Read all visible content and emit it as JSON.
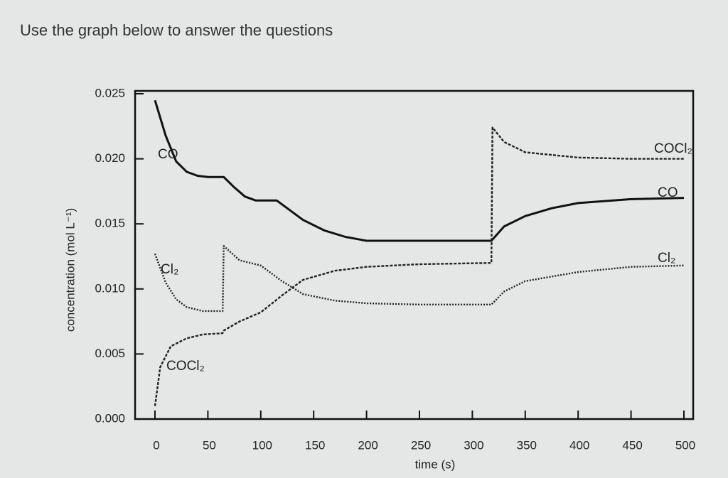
{
  "header": {
    "title": "Use the graph below to answer the questions"
  },
  "chart_data": {
    "type": "line",
    "x_label": "time (s)",
    "y_label": "concentration (mol L⁻¹)",
    "xlim": [
      0,
      500
    ],
    "xticks": [
      0,
      50,
      100,
      150,
      200,
      250,
      300,
      350,
      400,
      450,
      500
    ],
    "ylim": [
      0,
      0.025
    ],
    "yticks": [
      {
        "value": 0,
        "label": "0.000"
      },
      0.005,
      {
        "value": 0.01,
        "label": "0.010"
      },
      0.015,
      {
        "value": 0.02,
        "label": "0.020"
      },
      0.025
    ],
    "grid": false,
    "series": [
      {
        "name": "CO",
        "color": "#111111",
        "dash": "solid",
        "x": [
          0,
          10,
          20,
          30,
          40,
          50,
          65,
          75,
          85,
          95,
          115,
          125,
          140,
          160,
          180,
          200,
          250,
          318,
          330,
          350,
          375,
          400,
          450,
          500
        ],
        "values": [
          0.0245,
          0.0218,
          0.0198,
          0.019,
          0.0187,
          0.0186,
          0.0186,
          0.0178,
          0.0171,
          0.0168,
          0.0168,
          0.0162,
          0.0153,
          0.0145,
          0.014,
          0.0137,
          0.0137,
          0.0137,
          0.0148,
          0.0156,
          0.0162,
          0.0166,
          0.0169,
          0.017
        ]
      },
      {
        "name": "Cl₂",
        "color": "#222222",
        "dash": "dotted",
        "x": [
          0,
          10,
          20,
          30,
          45,
          64,
          65,
          80,
          100,
          120,
          140,
          170,
          200,
          250,
          318,
          330,
          350,
          400,
          450,
          500
        ],
        "values": [
          0.0127,
          0.0105,
          0.0092,
          0.0086,
          0.0083,
          0.0083,
          0.0133,
          0.0122,
          0.0118,
          0.0106,
          0.0096,
          0.0091,
          0.0089,
          0.0088,
          0.0088,
          0.0098,
          0.0106,
          0.0113,
          0.0117,
          0.0118
        ]
      },
      {
        "name": "COCl₂",
        "color": "#222222",
        "dash": "dashed",
        "x": [
          0,
          5,
          15,
          30,
          45,
          64,
          65,
          80,
          100,
          120,
          140,
          170,
          200,
          250,
          318,
          319,
          330,
          350,
          400,
          450,
          500
        ],
        "values": [
          0.001,
          0.004,
          0.0056,
          0.0062,
          0.0065,
          0.0066,
          0.0068,
          0.0075,
          0.0082,
          0.0095,
          0.0107,
          0.0114,
          0.0117,
          0.0119,
          0.012,
          0.0224,
          0.0213,
          0.0205,
          0.0201,
          0.02,
          0.02
        ]
      }
    ]
  }
}
